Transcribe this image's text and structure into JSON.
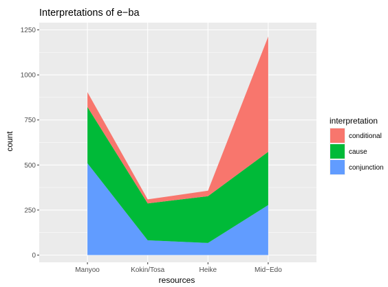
{
  "chart_data": {
    "type": "area",
    "stacked": true,
    "title": "Interpretations of e−ba",
    "xlabel": "resources",
    "ylabel": "count",
    "categories": [
      "Manyoo",
      "Kokin/Tosa",
      "Heike",
      "Mid−Edo"
    ],
    "ylim": [
      -40,
      1290
    ],
    "yticks": [
      0,
      250,
      500,
      750,
      1000,
      1250
    ],
    "series": [
      {
        "name": "conjunction",
        "color": "#619CFF",
        "values": [
          510,
          82,
          67,
          278
        ]
      },
      {
        "name": "cause",
        "color": "#00BA38",
        "values": [
          312,
          205,
          260,
          295
        ]
      },
      {
        "name": "conditional",
        "color": "#F8766D",
        "values": [
          82,
          22,
          30,
          640
        ]
      }
    ],
    "legend": {
      "title": "interpretation",
      "position": "right",
      "order": [
        "conditional",
        "cause",
        "conjunction"
      ]
    },
    "grid": true,
    "panel_background": "#EBEBEB"
  }
}
